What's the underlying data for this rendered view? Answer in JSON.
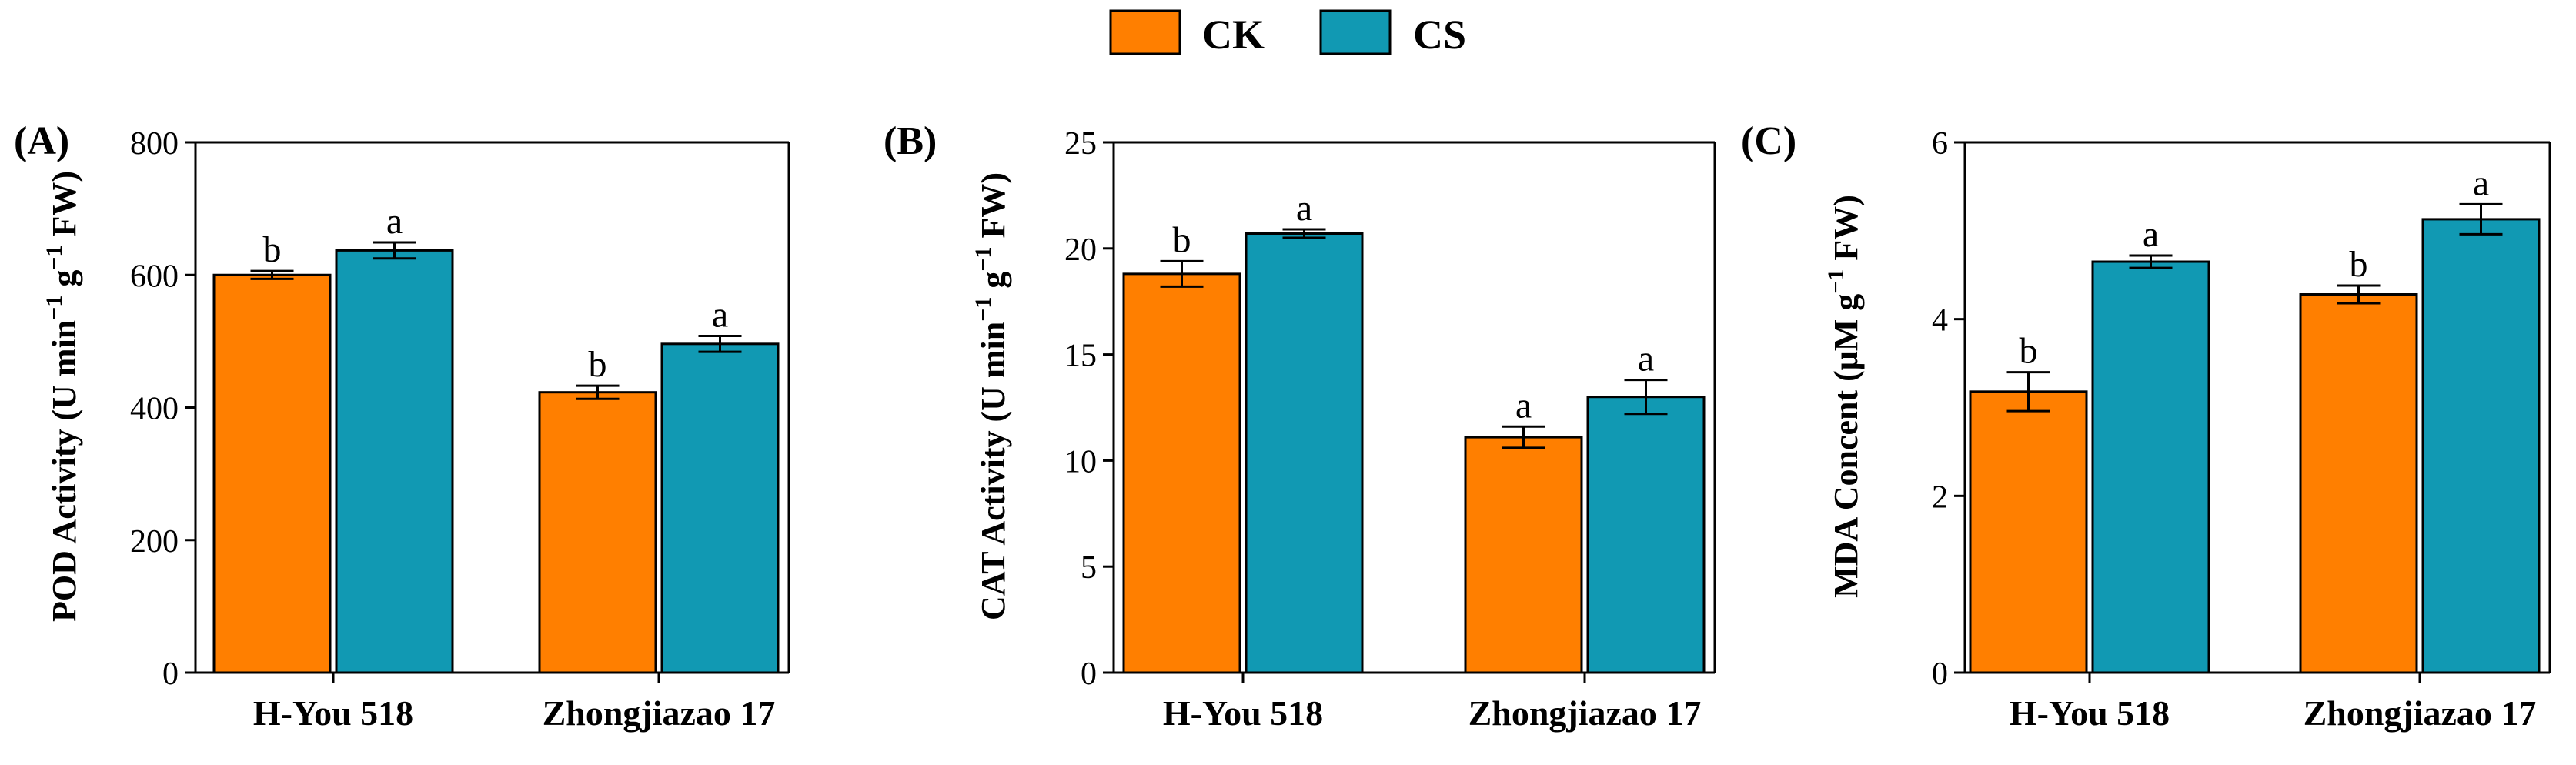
{
  "legend": {
    "position": "top-center",
    "items": [
      {
        "label": "CK",
        "color": "#FF7F00"
      },
      {
        "label": "CS",
        "color": "#1199B3"
      }
    ]
  },
  "chart_data": [
    {
      "type": "bar",
      "panel_label": "(A)",
      "title": "",
      "xlabel": "",
      "ylabel": "POD Activity (U min",
      "ylabel_mid": " g",
      "ylabel_end": " FW)",
      "ylabel_sup": "−1",
      "categories": [
        "H-You 518",
        "Zhongjiazao 17"
      ],
      "ylim": [
        0,
        800
      ],
      "yticks": [
        "0",
        "200",
        "400",
        "600",
        "800"
      ],
      "series": [
        {
          "name": "CK",
          "values": [
            600,
            423
          ],
          "errors": [
            6,
            10
          ],
          "letters": [
            "b",
            "b"
          ]
        },
        {
          "name": "CS",
          "values": [
            637,
            496
          ],
          "errors": [
            12,
            12
          ],
          "letters": [
            "a",
            "a"
          ]
        }
      ]
    },
    {
      "type": "bar",
      "panel_label": "(B)",
      "title": "",
      "xlabel": "",
      "ylabel": "CAT Activity (U min",
      "ylabel_mid": " g",
      "ylabel_end": " FW)",
      "ylabel_sup": "−1",
      "categories": [
        "H-You 518",
        "Zhongjiazao 17"
      ],
      "ylim": [
        0,
        25
      ],
      "yticks": [
        "0",
        "5",
        "10",
        "15",
        "20",
        "25"
      ],
      "series": [
        {
          "name": "CK",
          "values": [
            18.8,
            11.1
          ],
          "errors": [
            0.6,
            0.5
          ],
          "letters": [
            "b",
            "a"
          ]
        },
        {
          "name": "CS",
          "values": [
            20.7,
            13.0
          ],
          "errors": [
            0.2,
            0.8
          ],
          "letters": [
            "a",
            "a"
          ]
        }
      ]
    },
    {
      "type": "bar",
      "panel_label": "(C)",
      "title": "",
      "xlabel": "",
      "ylabel": "MDA Concent (μM g",
      "ylabel_mid": " FW)",
      "ylabel_end": "",
      "ylabel_sup": "−1",
      "categories": [
        "H-You 518",
        "Zhongjiazao 17"
      ],
      "ylim": [
        0,
        6
      ],
      "yticks": [
        "0",
        "2",
        "4",
        "6"
      ],
      "series": [
        {
          "name": "CK",
          "values": [
            3.18,
            4.28
          ],
          "errors": [
            0.22,
            0.1
          ],
          "letters": [
            "b",
            "b"
          ]
        },
        {
          "name": "CS",
          "values": [
            4.65,
            5.13
          ],
          "errors": [
            0.07,
            0.17
          ],
          "letters": [
            "a",
            "a"
          ]
        }
      ]
    }
  ]
}
